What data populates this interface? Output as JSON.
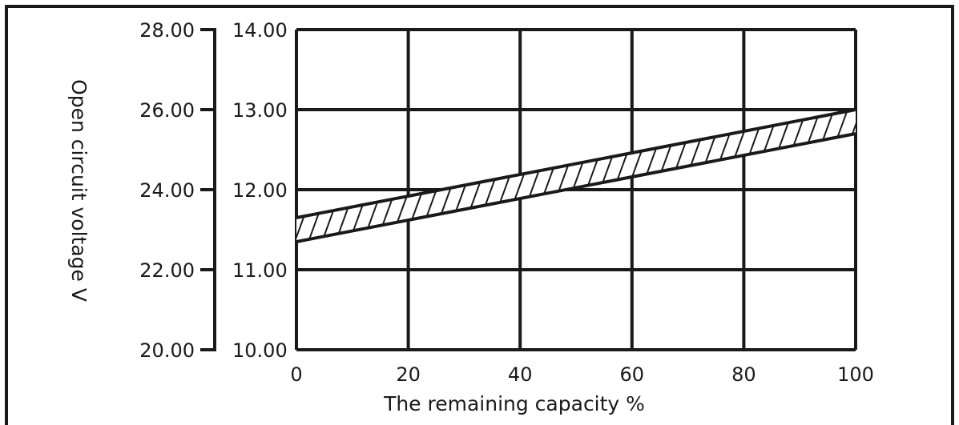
{
  "chart_data": {
    "type": "area",
    "xlabel": "The remaining capacity %",
    "ylabel": "Open circuit voltage V",
    "x_ticks": [
      "0",
      "20",
      "40",
      "60",
      "80",
      "100"
    ],
    "y_left_ticks": [
      "28.00",
      "26.00",
      "24.00",
      "22.00",
      "20.00"
    ],
    "y_right_ticks": [
      "14.00",
      "13.00",
      "12.00",
      "11.00",
      "10.00"
    ],
    "xlim": [
      0,
      100
    ],
    "ylim_inner": [
      10.0,
      14.0
    ],
    "ylim_outer": [
      20.0,
      28.0
    ],
    "grid": true,
    "band": {
      "x": [
        0,
        100
      ],
      "upper": [
        11.65,
        13.0
      ],
      "lower": [
        11.35,
        12.7
      ]
    },
    "hatch": "diagonal"
  }
}
